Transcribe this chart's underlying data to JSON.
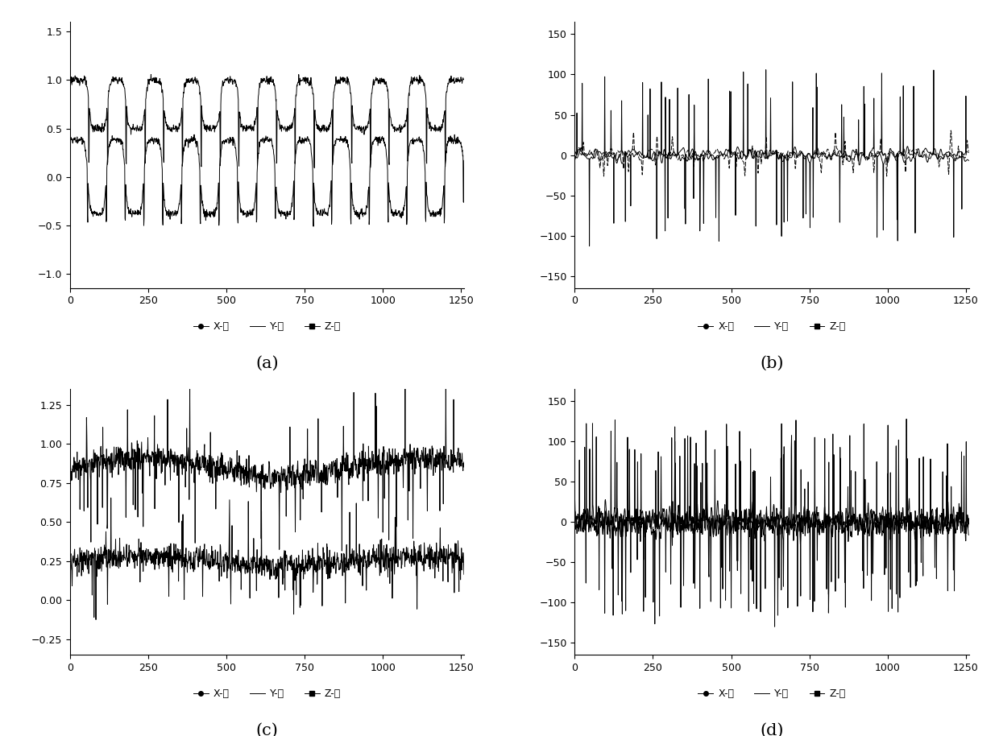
{
  "n_points": 1260,
  "subplot_labels": [
    "(a)",
    "(b)",
    "(c)",
    "(d)"
  ],
  "legend_labels": [
    "X-轴",
    "Y-轴",
    "Z-轴"
  ],
  "axes_a": {
    "ylim": [
      -1.15,
      1.6
    ],
    "yticks": [
      -1,
      -0.5,
      0,
      0.5,
      1,
      1.5
    ],
    "xlim": [
      0,
      1260
    ],
    "xticks": [
      0,
      250,
      500,
      750,
      1000,
      1250
    ]
  },
  "axes_b": {
    "ylim": [
      -165,
      165
    ],
    "yticks": [
      -150,
      -100,
      -50,
      0,
      50,
      100,
      150
    ],
    "xlim": [
      0,
      1260
    ],
    "xticks": [
      0,
      250,
      500,
      750,
      1000,
      1250
    ]
  },
  "axes_c": {
    "ylim": [
      -0.35,
      1.35
    ],
    "yticks": [
      -0.25,
      0,
      0.25,
      0.5,
      0.75,
      1,
      1.25
    ],
    "xlim": [
      0,
      1260
    ],
    "xticks": [
      0,
      250,
      500,
      750,
      1000,
      1250
    ]
  },
  "axes_d": {
    "ylim": [
      -165,
      165
    ],
    "yticks": [
      -150,
      -100,
      -50,
      0,
      50,
      100,
      150
    ],
    "xlim": [
      0,
      1260
    ],
    "xticks": [
      0,
      250,
      500,
      750,
      1000,
      1250
    ]
  },
  "line_color": "#000000",
  "line_width": 0.7,
  "font_size_tick": 9,
  "font_size_legend": 9,
  "font_size_subplot_label": 15
}
